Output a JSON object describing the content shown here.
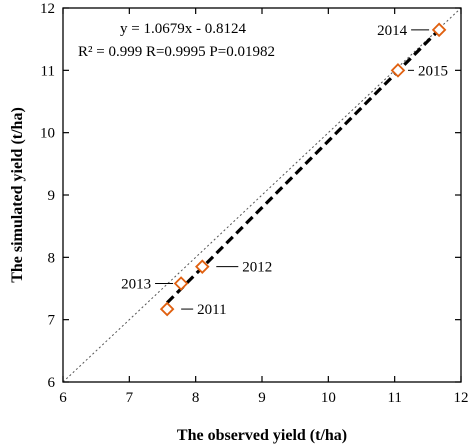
{
  "chart_data": {
    "type": "scatter",
    "xlabel": "The observed yield  (t/ha)",
    "ylabel": "The simulated yield  (t/ha)",
    "xlim": [
      6,
      12
    ],
    "ylim": [
      6,
      12
    ],
    "xticks": [
      6,
      7,
      8,
      9,
      10,
      11,
      12
    ],
    "yticks": [
      6,
      7,
      8,
      9,
      10,
      11,
      12
    ],
    "xtick_labels": [
      "6",
      "7",
      "8",
      "9",
      "10",
      "11",
      "12"
    ],
    "ytick_labels": [
      "6",
      "7",
      "8",
      "9",
      "10",
      "11",
      "12"
    ],
    "grid": false,
    "equation_line1": "y = 1.0679x - 0.8124",
    "equation_line2": "R² = 0.999   R=0.9995   P=0.01982",
    "points": [
      {
        "label": "2011",
        "x": 7.57,
        "y": 7.17
      },
      {
        "label": "2012",
        "x": 8.1,
        "y": 7.85
      },
      {
        "label": "2013",
        "x": 7.78,
        "y": 7.58
      },
      {
        "label": "2014",
        "x": 11.67,
        "y": 11.65
      },
      {
        "label": "2015",
        "x": 11.05,
        "y": 11.0
      }
    ],
    "regression": {
      "slope": 1.0679,
      "intercept": -0.8124,
      "x_range": [
        7.57,
        11.67
      ]
    },
    "reference_line": "1:1",
    "colors": {
      "marker": "#e06010",
      "regression": "#000000",
      "reference": "#555555"
    }
  }
}
